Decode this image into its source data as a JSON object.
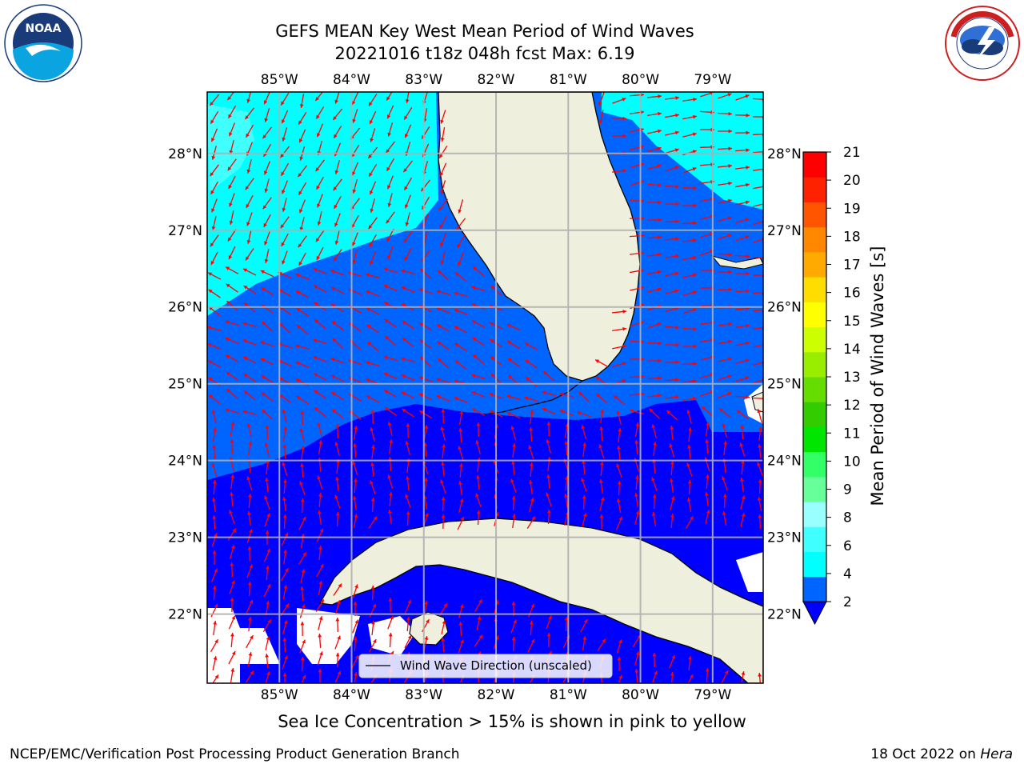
{
  "header": {
    "title_line1": "GEFS MEAN Key West Mean Period of Wind Waves",
    "title_line2": "20221016 t18z 048h fcst   Max: 6.19"
  },
  "logos": {
    "noaa_text": "NOAA",
    "noaa_ring_text": "NATIONAL OCEANIC AND ATMOSPHERIC ADMINISTRATION · U.S. DEPARTMENT OF COMMERCE",
    "nws_ring_text": "NATIONAL WEATHER SERVICE"
  },
  "map": {
    "lon_labels": [
      "85°W",
      "84°W",
      "83°W",
      "82°W",
      "81°W",
      "80°W",
      "79°W"
    ],
    "lat_labels": [
      "28°N",
      "27°N",
      "26°N",
      "25°N",
      "24°N",
      "23°N",
      "22°N"
    ],
    "lon_range": [
      -86.0,
      -78.3
    ],
    "lat_range": [
      21.1,
      28.8
    ],
    "legend_label": "Wind Wave Direction (unscaled)",
    "arrow_color": "#ff0000",
    "land_color": "#efefde",
    "field_levels": [
      {
        "range": "2-4",
        "color": "#0064ff"
      },
      {
        "range": "4-6",
        "color": "#00ffff"
      },
      {
        "range": "<2",
        "color": "#0000ff"
      }
    ]
  },
  "colorbar": {
    "title": "Mean Period of Wind Waves [s]",
    "ticks": [
      "2",
      "4",
      "6",
      "8",
      "9",
      "10",
      "11",
      "12",
      "13",
      "14",
      "15",
      "16",
      "17",
      "18",
      "19",
      "20",
      "21"
    ],
    "colors": [
      "#0064ff",
      "#00ffff",
      "#40ffff",
      "#99ffff",
      "#66ff99",
      "#33ff66",
      "#00e600",
      "#33cc00",
      "#66dd00",
      "#99ee00",
      "#ccff00",
      "#ffff00",
      "#ffdd00",
      "#ffaa00",
      "#ff8800",
      "#ff5500",
      "#ff2200",
      "#ff0000"
    ],
    "extend_color": "#0000ff"
  },
  "footer": {
    "note": "Sea Ice Concentration > 15% is shown in pink to yellow",
    "credit_left": "NCEP/EMC/Verification Post Processing Product Generation Branch",
    "credit_date": "18 Oct 2022 on",
    "credit_host": "Hera"
  }
}
